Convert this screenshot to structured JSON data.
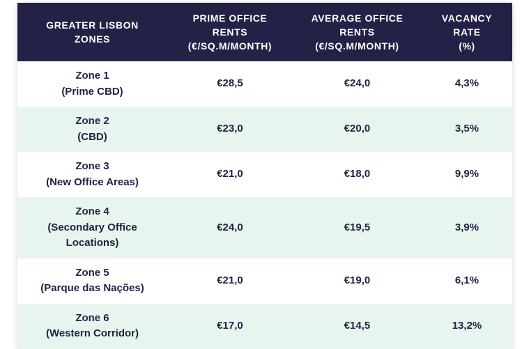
{
  "table": {
    "headers": [
      "GREATER LISBON\nZONES",
      "PRIME OFFICE\nRENTS\n(€/SQ.M/MONTH)",
      "AVERAGE OFFICE\nRENTS\n(€/SQ.M/MONTH)",
      "VACANCY\nRATE\n(%)"
    ],
    "rows": [
      {
        "zone": "Zone 1\n(Prime CBD)",
        "prime": "€28,5",
        "avg": "€24,0",
        "vacancy": "4,3%"
      },
      {
        "zone": "Zone 2\n(CBD)",
        "prime": "€23,0",
        "avg": "€20,0",
        "vacancy": "3,5%"
      },
      {
        "zone": "Zone 3\n(New Office Areas)",
        "prime": "€21,0",
        "avg": "€18,0",
        "vacancy": "9,9%"
      },
      {
        "zone": "Zone 4\n(Secondary Office\nLocations)",
        "prime": "€24,0",
        "avg": "€19,5",
        "vacancy": "3,9%"
      },
      {
        "zone": "Zone 5\n(Parque das Nações)",
        "prime": "€21,0",
        "avg": "€19,0",
        "vacancy": "6,1%"
      },
      {
        "zone": "Zone 6\n(Western Corridor)",
        "prime": "€17,0",
        "avg": "€14,5",
        "vacancy": "13,2%"
      }
    ]
  },
  "colors": {
    "header_bg": "#232145",
    "alt_row_bg": "#e7f5ee",
    "text_navy": "#232145",
    "header_text": "#ffffff"
  },
  "chart_data": {
    "type": "table",
    "title": "Greater Lisbon Zones Office Rents and Vacancy",
    "columns": [
      "Greater Lisbon Zones",
      "Prime Office Rents (€/sq.m/month)",
      "Average Office Rents (€/sq.m/month)",
      "Vacancy Rate (%)"
    ],
    "rows": [
      {
        "zone": "Zone 1 (Prime CBD)",
        "prime_rent": 28.5,
        "average_rent": 24.0,
        "vacancy_rate": 4.3
      },
      {
        "zone": "Zone 2 (CBD)",
        "prime_rent": 23.0,
        "average_rent": 20.0,
        "vacancy_rate": 3.5
      },
      {
        "zone": "Zone 3 (New Office Areas)",
        "prime_rent": 21.0,
        "average_rent": 18.0,
        "vacancy_rate": 9.9
      },
      {
        "zone": "Zone 4 (Secondary Office Locations)",
        "prime_rent": 24.0,
        "average_rent": 19.5,
        "vacancy_rate": 3.9
      },
      {
        "zone": "Zone 5 (Parque das Nações)",
        "prime_rent": 21.0,
        "average_rent": 19.0,
        "vacancy_rate": 6.1
      },
      {
        "zone": "Zone 6 (Western Corridor)",
        "prime_rent": 17.0,
        "average_rent": 14.5,
        "vacancy_rate": 13.2
      }
    ]
  }
}
